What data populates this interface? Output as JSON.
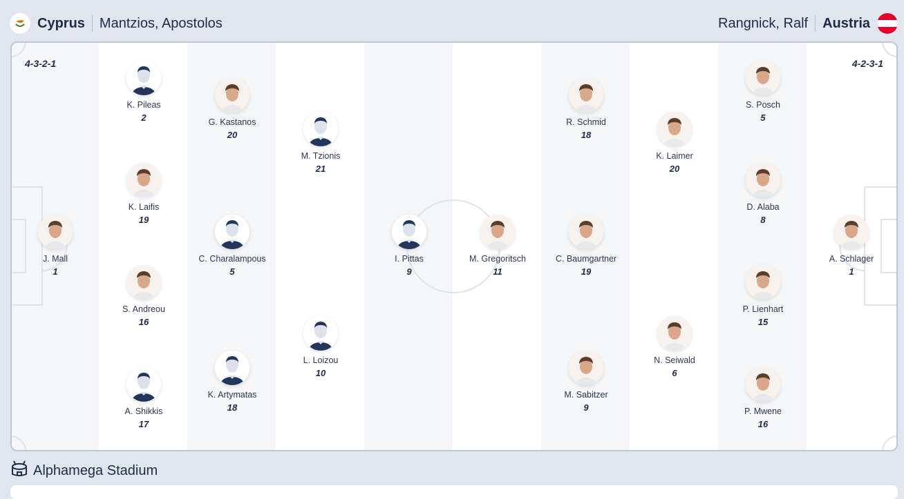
{
  "home": {
    "team": "Cyprus",
    "coach": "Mantzios, Apostolos",
    "formation": "4-3-2-1",
    "flag_colors": [
      "#ffffff",
      "#d57800",
      "#4e7c2f"
    ],
    "players": [
      {
        "name": "J. Mall",
        "number": "1",
        "photo": true
      },
      {
        "name": "K. Pileas",
        "number": "2",
        "photo": false
      },
      {
        "name": "K. Laifis",
        "number": "19",
        "photo": true
      },
      {
        "name": "S. Andreou",
        "number": "16",
        "photo": true
      },
      {
        "name": "A. Shikkis",
        "number": "17",
        "photo": false
      },
      {
        "name": "G. Kastanos",
        "number": "20",
        "photo": true
      },
      {
        "name": "C. Charalampous",
        "number": "5",
        "photo": false
      },
      {
        "name": "K. Artymatas",
        "number": "18",
        "photo": false
      },
      {
        "name": "M. Tzionis",
        "number": "21",
        "photo": false
      },
      {
        "name": "L. Loizou",
        "number": "10",
        "photo": false
      },
      {
        "name": "I. Pittas",
        "number": "9",
        "photo": false
      }
    ]
  },
  "away": {
    "team": "Austria",
    "coach": "Rangnick, Ralf",
    "formation": "4-2-3-1",
    "flag_colors": [
      "#e4002b",
      "#ffffff"
    ],
    "players": [
      {
        "name": "M. Gregoritsch",
        "number": "11",
        "photo": true
      },
      {
        "name": "R. Schmid",
        "number": "18",
        "photo": true
      },
      {
        "name": "C. Baumgartner",
        "number": "19",
        "photo": true
      },
      {
        "name": "M. Sabitzer",
        "number": "9",
        "photo": true
      },
      {
        "name": "K. Laimer",
        "number": "20",
        "photo": true
      },
      {
        "name": "N. Seiwald",
        "number": "6",
        "photo": true
      },
      {
        "name": "S. Posch",
        "number": "5",
        "photo": true
      },
      {
        "name": "D. Alaba",
        "number": "8",
        "photo": true
      },
      {
        "name": "P. Lienhart",
        "number": "15",
        "photo": true
      },
      {
        "name": "P. Mwene",
        "number": "16",
        "photo": true
      },
      {
        "name": "A. Schlager",
        "number": "1",
        "photo": true
      }
    ]
  },
  "venue": {
    "name": "Alphamega Stadium",
    "icon": "stadium-icon"
  }
}
